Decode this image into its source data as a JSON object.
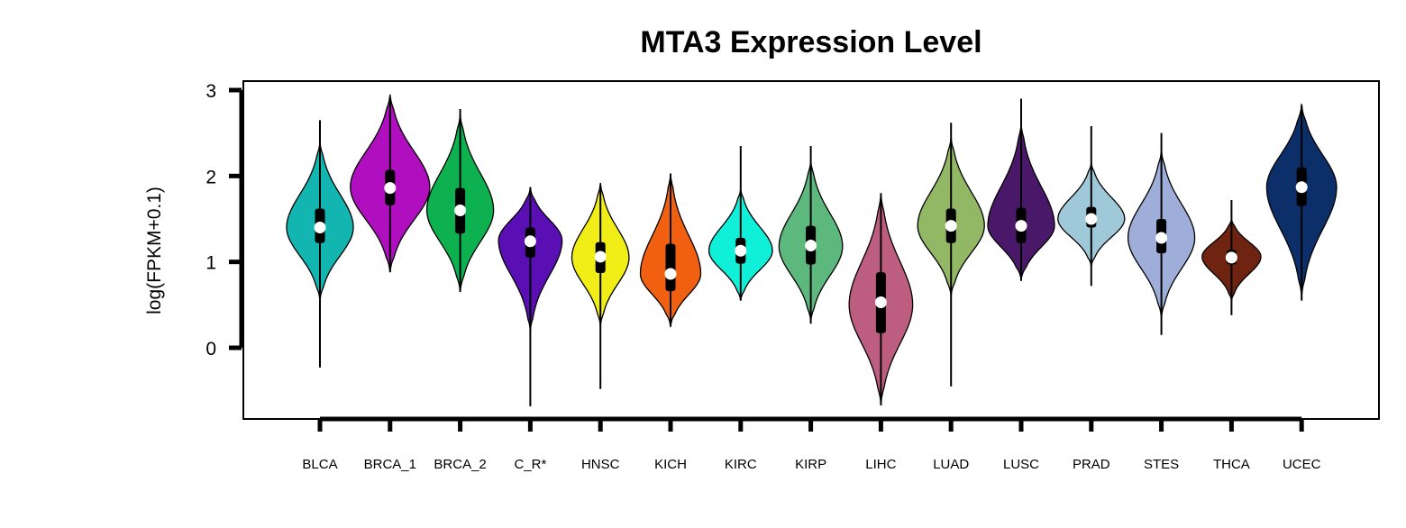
{
  "chart_data": {
    "type": "violin",
    "title": "MTA3 Expression Level",
    "xlabel": "",
    "ylabel": "log(FPKM+0.1)",
    "ylim": [
      -0.8,
      3.1
    ],
    "yticks": [
      0,
      1,
      2,
      3
    ],
    "categories": [
      "BLCA",
      "BRCA_1",
      "BRCA_2",
      "C_R*",
      "HNSC",
      "KICH",
      "KIRC",
      "KIRP",
      "LIHC",
      "LUAD",
      "LUSC",
      "PRAD",
      "STES",
      "THCA",
      "UCEC"
    ],
    "series": [
      {
        "name": "BLCA",
        "color": "#12b5b0",
        "min": -0.23,
        "max": 2.65,
        "violin_min": 0.55,
        "violin_max": 2.4,
        "q1": 1.22,
        "median": 1.4,
        "q3": 1.62,
        "mode": 1.4,
        "peak_width": 0.42
      },
      {
        "name": "BRCA_1",
        "color": "#b00fc0",
        "min": 0.88,
        "max": 2.92,
        "violin_min": 0.88,
        "violin_max": 2.95,
        "q1": 1.66,
        "median": 1.86,
        "q3": 2.07,
        "mode": 1.87,
        "peak_width": 0.5
      },
      {
        "name": "BRCA_2",
        "color": "#0db150",
        "min": 0.65,
        "max": 2.78,
        "violin_min": 0.65,
        "violin_max": 2.72,
        "q1": 1.33,
        "median": 1.6,
        "q3": 1.86,
        "mode": 1.6,
        "peak_width": 0.42
      },
      {
        "name": "C_R*",
        "color": "#5a0fb5",
        "min": -0.68,
        "max": 1.87,
        "violin_min": 0.2,
        "violin_max": 1.87,
        "q1": 1.05,
        "median": 1.24,
        "q3": 1.4,
        "mode": 1.25,
        "peak_width": 0.4
      },
      {
        "name": "HNSC",
        "color": "#f0ee16",
        "min": -0.48,
        "max": 1.9,
        "violin_min": 0.25,
        "violin_max": 1.92,
        "q1": 0.87,
        "median": 1.06,
        "q3": 1.23,
        "mode": 1.05,
        "peak_width": 0.36
      },
      {
        "name": "KICH",
        "color": "#f06010",
        "min": 0.25,
        "max": 2.03,
        "violin_min": 0.24,
        "violin_max": 2.02,
        "q1": 0.66,
        "median": 0.86,
        "q3": 1.21,
        "mode": 0.86,
        "peak_width": 0.38
      },
      {
        "name": "KIRC",
        "color": "#10f0d8",
        "min": 0.55,
        "max": 2.35,
        "violin_min": 0.55,
        "violin_max": 1.85,
        "q1": 0.98,
        "median": 1.13,
        "q3": 1.28,
        "mode": 1.13,
        "peak_width": 0.4
      },
      {
        "name": "KIRP",
        "color": "#5cb87c",
        "min": 0.28,
        "max": 2.35,
        "violin_min": 0.3,
        "violin_max": 2.18,
        "q1": 0.97,
        "median": 1.19,
        "q3": 1.42,
        "mode": 1.18,
        "peak_width": 0.4
      },
      {
        "name": "LIHC",
        "color": "#bd5d80",
        "min": -0.67,
        "max": 1.8,
        "violin_min": -0.67,
        "violin_max": 1.8,
        "q1": 0.17,
        "median": 0.53,
        "q3": 0.88,
        "mode": 0.5,
        "peak_width": 0.4
      },
      {
        "name": "LUAD",
        "color": "#93b865",
        "min": -0.45,
        "max": 2.62,
        "violin_min": 0.6,
        "violin_max": 2.45,
        "q1": 1.22,
        "median": 1.42,
        "q3": 1.62,
        "mode": 1.42,
        "peak_width": 0.42
      },
      {
        "name": "LUSC",
        "color": "#4a1868",
        "min": 0.78,
        "max": 2.9,
        "violin_min": 0.78,
        "violin_max": 2.6,
        "q1": 1.22,
        "median": 1.42,
        "q3": 1.63,
        "mode": 1.42,
        "peak_width": 0.42
      },
      {
        "name": "PRAD",
        "color": "#9fc8d8",
        "min": 0.72,
        "max": 2.58,
        "violin_min": 0.95,
        "violin_max": 2.15,
        "q1": 1.4,
        "median": 1.5,
        "q3": 1.64,
        "mode": 1.5,
        "peak_width": 0.42
      },
      {
        "name": "STES",
        "color": "#9eaed8",
        "min": 0.15,
        "max": 2.5,
        "violin_min": 0.35,
        "violin_max": 2.3,
        "q1": 1.1,
        "median": 1.28,
        "q3": 1.5,
        "mode": 1.28,
        "peak_width": 0.42
      },
      {
        "name": "THCA",
        "color": "#6e2410",
        "min": 0.38,
        "max": 1.72,
        "violin_min": 0.55,
        "violin_max": 1.5,
        "q1": 0.97,
        "median": 1.05,
        "q3": 1.14,
        "mode": 1.06,
        "peak_width": 0.37
      },
      {
        "name": "UCEC",
        "color": "#0c2f6a",
        "min": 0.55,
        "max": 2.82,
        "violin_min": 0.6,
        "violin_max": 2.84,
        "q1": 1.65,
        "median": 1.87,
        "q3": 2.1,
        "mode": 1.87,
        "peak_width": 0.44
      }
    ]
  }
}
